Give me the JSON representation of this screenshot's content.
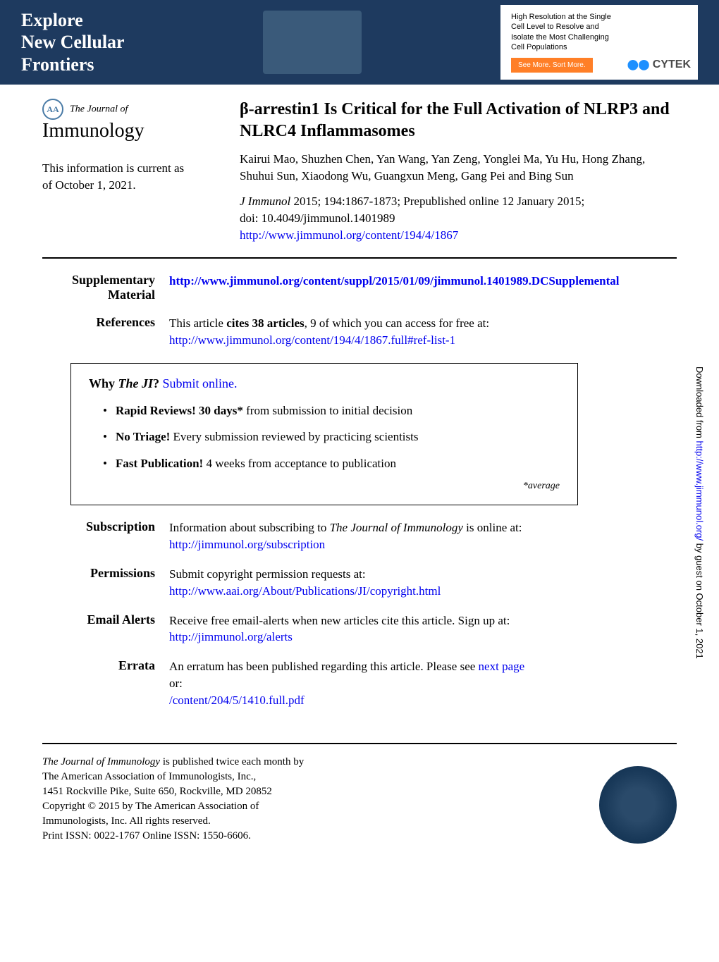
{
  "banner": {
    "left_line1": "Explore",
    "left_line2": "New Cellular",
    "left_line3": "Frontiers",
    "right_line1": "High Resolution at the Single",
    "right_line2": "Cell Level to Resolve and",
    "right_line3": "Isolate the Most Challenging",
    "right_line4": "Cell Populations",
    "button_text": "See More. Sort More.",
    "cytek_text": "CYTEK"
  },
  "journal": {
    "logo_prefix": "The",
    "logo_top": "Journal of",
    "logo_main": "Immunology",
    "aa_text": "AA"
  },
  "current_info": {
    "line1": "This information is current as",
    "line2": "of October 1, 2021."
  },
  "article": {
    "title": "β-arrestin1 Is Critical for the Full Activation of NLRP3 and NLRC4 Inflammasomes",
    "authors": "Kairui Mao, Shuzhen Chen, Yan Wang, Yan Zeng, Yonglei Ma, Yu Hu, Hong Zhang, Shuhui Sun, Xiaodong Wu, Guangxun Meng, Gang Pei and Bing Sun",
    "citation_journal": "J Immunol",
    "citation_text": " 2015; 194:1867-1873; Prepublished online 12 January 2015;",
    "doi": "doi: 10.4049/jimmunol.1401989",
    "url": "http://www.jimmunol.org/content/194/4/1867"
  },
  "sections": {
    "supplementary": {
      "label": "Supplementary Material",
      "url": "http://www.jimmunol.org/content/suppl/2015/01/09/jimmunol.1401989.DCSupplemental"
    },
    "references": {
      "label": "References",
      "text_prefix": "This article ",
      "text_bold": "cites 38 articles",
      "text_suffix": ", 9 of which you can access for free at:",
      "url": "http://www.jimmunol.org/content/194/4/1867.full#ref-list-1"
    },
    "subscription": {
      "label": "Subscription",
      "text": "Information about subscribing to ",
      "text_italic": "The Journal of Immunology",
      "text_suffix": " is online at:",
      "url": "http://jimmunol.org/subscription"
    },
    "permissions": {
      "label": "Permissions",
      "text": "Submit copyright permission requests at:",
      "url": "http://www.aai.org/About/Publications/JI/copyright.html"
    },
    "email_alerts": {
      "label": "Email Alerts",
      "text": "Receive free email-alerts when new articles cite this article. Sign up at:",
      "url": "http://jimmunol.org/alerts"
    },
    "errata": {
      "label": "Errata",
      "text": "An erratum has been published regarding this article. Please see ",
      "link_text": "next page",
      "text_or": "or:",
      "url": "/content/204/5/1410.full.pdf"
    }
  },
  "why_box": {
    "title_bold1": "Why ",
    "title_italic": "The JI",
    "title_bold2": "?",
    "title_link": " Submit online.",
    "item1_bold": "Rapid Reviews! 30 days*",
    "item1_text": " from submission to initial decision",
    "item2_bold": "No Triage!",
    "item2_text": " Every submission reviewed by practicing scientists",
    "item3_bold": "Fast Publication!",
    "item3_text": " 4 weeks from acceptance to publication",
    "average_note": "*average"
  },
  "footer": {
    "line1_italic": "The Journal of Immunology",
    "line1_text": " is published twice each month by",
    "line2": "The American Association of Immunologists, Inc.,",
    "line3": "1451 Rockville Pike, Suite 650, Rockville, MD 20852",
    "line4": "Copyright © 2015 by The American Association of",
    "line5": "Immunologists, Inc. All rights reserved.",
    "line6": "Print ISSN: 0022-1767 Online ISSN: 1550-6606."
  },
  "side_text": {
    "prefix": "Downloaded from ",
    "url": "http://www.jimmunol.org/",
    "suffix": " by guest on October 1, 2021"
  },
  "colors": {
    "banner_bg": "#1e3a5f",
    "link": "#0000ee",
    "button_bg": "#ff7f27"
  }
}
